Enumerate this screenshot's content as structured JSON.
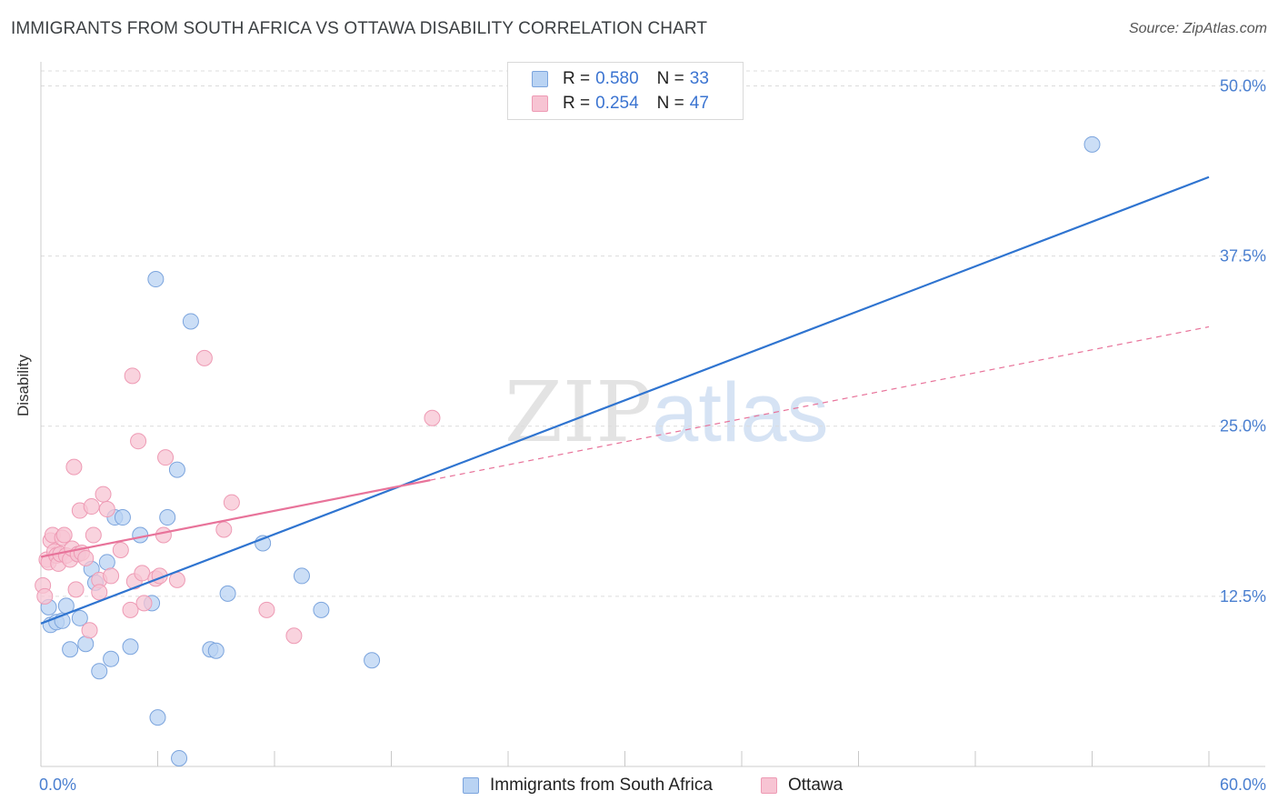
{
  "title": "IMMIGRANTS FROM SOUTH AFRICA VS OTTAWA DISABILITY CORRELATION CHART",
  "source": "Source: ZipAtlas.com",
  "watermark": {
    "zip": "ZIP",
    "atlas": "atlas"
  },
  "legend": {
    "r_label": "R =",
    "n_label": "N =",
    "series": [
      {
        "r": "0.580",
        "n": "33"
      },
      {
        "r": "0.254",
        "n": "47"
      }
    ]
  },
  "bottom_legend": [
    "Immigrants from South Africa",
    "Ottawa"
  ],
  "colors": {
    "blue_fill": "#b9d3f3",
    "blue_stroke": "#7ba4dd",
    "blue_line": "#2f74d0",
    "pink_fill": "#f7c4d3",
    "pink_stroke": "#ee9ab4",
    "pink_line": "#e8739a",
    "grid": "#dcdcdc",
    "axis_label": "#4a7fd0"
  },
  "chart_data": {
    "type": "scatter",
    "title": "IMMIGRANTS FROM SOUTH AFRICA VS OTTAWA DISABILITY CORRELATION CHART",
    "xlabel": "",
    "ylabel": "Disability",
    "xlim": [
      0,
      60
    ],
    "ylim": [
      0,
      51.5
    ],
    "x_tick_labels": [
      "0.0%",
      "60.0%"
    ],
    "y_ticks": [
      12.5,
      25.0,
      37.5,
      50.0
    ],
    "y_tick_labels": [
      "12.5%",
      "25.0%",
      "37.5%",
      "50.0%"
    ],
    "grid": true,
    "series": [
      {
        "name": "Immigrants from South Africa",
        "r": 0.58,
        "n": 33,
        "trend": {
          "x": [
            0,
            60
          ],
          "y": [
            10.5,
            43.3
          ],
          "style": "solid"
        },
        "points": [
          [
            0.4,
            11.7
          ],
          [
            0.5,
            10.4
          ],
          [
            0.8,
            10.6
          ],
          [
            1.1,
            10.7
          ],
          [
            1.3,
            11.8
          ],
          [
            1.5,
            8.6
          ],
          [
            1.9,
            15.6
          ],
          [
            2.0,
            10.9
          ],
          [
            2.3,
            9.0
          ],
          [
            2.6,
            14.5
          ],
          [
            2.8,
            13.5
          ],
          [
            3.0,
            7.0
          ],
          [
            3.4,
            15.0
          ],
          [
            3.6,
            7.9
          ],
          [
            3.8,
            18.3
          ],
          [
            4.2,
            18.3
          ],
          [
            4.6,
            8.8
          ],
          [
            5.1,
            17.0
          ],
          [
            5.7,
            12.0
          ],
          [
            5.9,
            35.8
          ],
          [
            6.0,
            3.6
          ],
          [
            6.5,
            18.3
          ],
          [
            7.0,
            21.8
          ],
          [
            7.1,
            0.6
          ],
          [
            7.7,
            32.7
          ],
          [
            8.7,
            8.6
          ],
          [
            9.0,
            8.5
          ],
          [
            9.6,
            12.7
          ],
          [
            11.4,
            16.4
          ],
          [
            13.4,
            14.0
          ],
          [
            14.4,
            11.5
          ],
          [
            17.0,
            7.8
          ],
          [
            54.0,
            45.7
          ]
        ]
      },
      {
        "name": "Ottawa",
        "r": 0.254,
        "n": 47,
        "trend": {
          "x": [
            0,
            60
          ],
          "y": [
            15.4,
            32.3
          ],
          "solid_until_x": 20,
          "style": "solid-then-dashed"
        },
        "points": [
          [
            0.1,
            13.3
          ],
          [
            0.2,
            12.5
          ],
          [
            0.3,
            15.2
          ],
          [
            0.4,
            15.0
          ],
          [
            0.5,
            16.6
          ],
          [
            0.6,
            17.0
          ],
          [
            0.7,
            15.8
          ],
          [
            0.8,
            15.5
          ],
          [
            0.9,
            14.9
          ],
          [
            1.0,
            15.6
          ],
          [
            1.1,
            16.8
          ],
          [
            1.2,
            17.0
          ],
          [
            1.3,
            15.5
          ],
          [
            1.5,
            15.2
          ],
          [
            1.6,
            16.0
          ],
          [
            1.7,
            22.0
          ],
          [
            1.8,
            13.0
          ],
          [
            1.9,
            15.6
          ],
          [
            2.0,
            18.8
          ],
          [
            2.1,
            15.7
          ],
          [
            2.3,
            15.3
          ],
          [
            2.5,
            10.0
          ],
          [
            2.6,
            19.1
          ],
          [
            2.7,
            17.0
          ],
          [
            3.0,
            13.7
          ],
          [
            3.0,
            12.8
          ],
          [
            3.2,
            20.0
          ],
          [
            3.4,
            18.9
          ],
          [
            3.6,
            14.0
          ],
          [
            4.1,
            15.9
          ],
          [
            4.6,
            11.5
          ],
          [
            4.7,
            28.7
          ],
          [
            4.8,
            13.6
          ],
          [
            5.0,
            23.9
          ],
          [
            5.2,
            14.2
          ],
          [
            5.3,
            12.0
          ],
          [
            5.9,
            13.8
          ],
          [
            6.3,
            17.0
          ],
          [
            6.1,
            14.0
          ],
          [
            6.4,
            22.7
          ],
          [
            7.0,
            13.7
          ],
          [
            8.4,
            30.0
          ],
          [
            9.4,
            17.4
          ],
          [
            9.8,
            19.4
          ],
          [
            11.6,
            11.5
          ],
          [
            13.0,
            9.6
          ],
          [
            20.1,
            25.6
          ]
        ]
      }
    ]
  }
}
